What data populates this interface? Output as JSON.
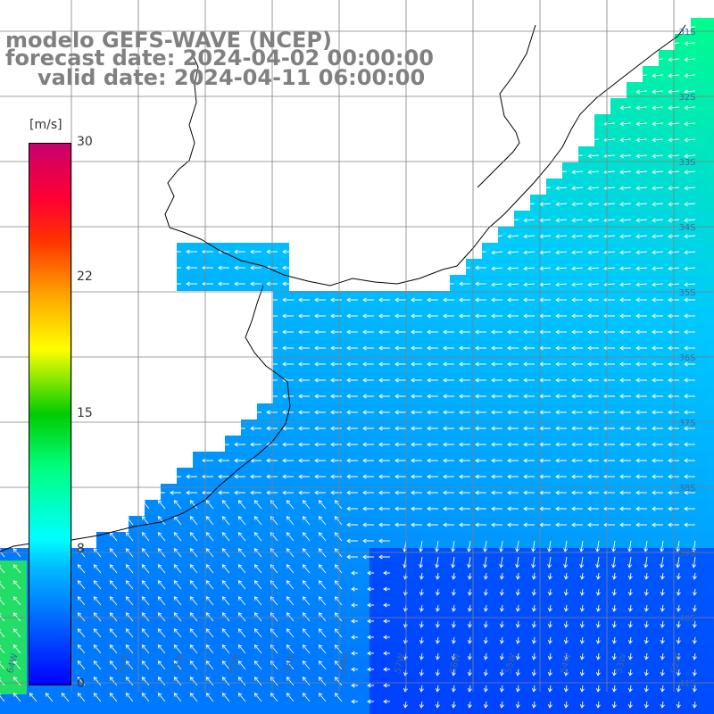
{
  "title": {
    "line1": "modelo GEFS-WAVE (NCEP)",
    "line2": "forecast date: 2024-04-02 00:00:00",
    "line3": "valid date: 2024-04-11 06:00:00"
  },
  "colorbar": {
    "unit": "[m/s]",
    "ticks": [
      "30",
      "22",
      "15",
      "8",
      "0"
    ],
    "colors": [
      "#0000ff",
      "#00bfff",
      "#00ffff",
      "#00ff7f",
      "#00cc00",
      "#ffff00",
      "#ffa500",
      "#ff3300",
      "#c8006e"
    ]
  },
  "lat_labels": [
    "31S",
    "32S",
    "33S",
    "34S",
    "35S",
    "36S",
    "37S",
    "38S",
    "39S",
    "40S",
    "41S"
  ],
  "lon_labels": [
    "64W",
    "63W",
    "62W",
    "61W",
    "60W",
    "59W",
    "58W",
    "57W",
    "56W",
    "55W",
    "54W",
    "53W",
    "52W"
  ],
  "land_color": "#ffffff",
  "grid_color": "#808080",
  "arrow_color": "#ffffff"
}
